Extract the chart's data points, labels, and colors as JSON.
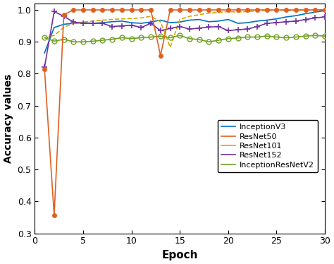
{
  "title": "",
  "xlabel": "Epoch",
  "ylabel": "Accuracy values",
  "xlim": [
    0,
    30
  ],
  "ylim": [
    0.3,
    1.02
  ],
  "yticks": [
    0.3,
    0.4,
    0.5,
    0.6,
    0.7,
    0.8,
    0.9,
    1.0
  ],
  "xticks": [
    0,
    5,
    10,
    15,
    20,
    25,
    30
  ],
  "InceptionV3": {
    "color": "#0070C0",
    "linestyle": "-",
    "marker": null,
    "linewidth": 1.2,
    "x": [
      1,
      2,
      3,
      4,
      5,
      6,
      7,
      8,
      9,
      10,
      11,
      12,
      13,
      14,
      15,
      16,
      17,
      18,
      19,
      20,
      21,
      22,
      23,
      24,
      25,
      26,
      27,
      28,
      29,
      30
    ],
    "y": [
      0.865,
      0.945,
      0.955,
      0.958,
      0.96,
      0.958,
      0.96,
      0.963,
      0.965,
      0.96,
      0.958,
      0.962,
      0.968,
      0.96,
      0.962,
      0.968,
      0.97,
      0.963,
      0.965,
      0.97,
      0.958,
      0.96,
      0.965,
      0.968,
      0.972,
      0.978,
      0.982,
      0.988,
      0.993,
      0.998
    ]
  },
  "ResNet50": {
    "color": "#E06020",
    "linestyle": "-",
    "marker": "o",
    "markersize": 4,
    "linewidth": 1.2,
    "x": [
      1,
      2,
      3,
      4,
      5,
      6,
      7,
      8,
      9,
      10,
      11,
      12,
      13,
      14,
      15,
      16,
      17,
      18,
      19,
      20,
      21,
      22,
      23,
      24,
      25,
      26,
      27,
      28,
      29,
      30
    ],
    "y": [
      0.815,
      0.357,
      0.985,
      1.0,
      1.0,
      1.0,
      1.0,
      1.0,
      1.0,
      1.0,
      1.0,
      1.0,
      0.857,
      1.0,
      1.0,
      1.0,
      1.0,
      1.0,
      1.0,
      1.0,
      1.0,
      1.0,
      1.0,
      1.0,
      1.0,
      1.0,
      1.0,
      1.0,
      1.0,
      1.0
    ]
  },
  "ResNet101": {
    "color": "#D4A800",
    "linestyle": "--",
    "marker": null,
    "linewidth": 1.2,
    "x": [
      1,
      2,
      3,
      4,
      5,
      6,
      7,
      8,
      9,
      10,
      11,
      12,
      13,
      14,
      15,
      16,
      17,
      18,
      19,
      20,
      21,
      22,
      23,
      24,
      25,
      26,
      27,
      28,
      29,
      30
    ],
    "y": [
      0.912,
      0.92,
      0.945,
      0.958,
      0.962,
      0.965,
      0.968,
      0.97,
      0.972,
      0.973,
      0.975,
      0.98,
      0.963,
      0.883,
      0.97,
      0.98,
      0.985,
      0.99,
      0.992,
      0.995,
      0.993,
      0.995,
      0.997,
      0.998,
      1.0,
      0.998,
      0.998,
      1.0,
      1.0,
      1.0
    ]
  },
  "ResNet152": {
    "color": "#7030A0",
    "linestyle": "-",
    "marker": "+",
    "markersize": 6,
    "markeredgewidth": 1.2,
    "linewidth": 1.2,
    "x": [
      1,
      2,
      3,
      4,
      5,
      6,
      7,
      8,
      9,
      10,
      11,
      12,
      13,
      14,
      15,
      16,
      17,
      18,
      19,
      20,
      21,
      22,
      23,
      24,
      25,
      26,
      27,
      28,
      29,
      30
    ],
    "y": [
      0.82,
      0.995,
      0.98,
      0.962,
      0.958,
      0.958,
      0.958,
      0.948,
      0.95,
      0.952,
      0.945,
      0.958,
      0.935,
      0.942,
      0.948,
      0.94,
      0.943,
      0.946,
      0.948,
      0.935,
      0.938,
      0.94,
      0.948,
      0.958,
      0.96,
      0.963,
      0.965,
      0.97,
      0.975,
      0.978
    ]
  },
  "InceptionResNetV2": {
    "color": "#70A020",
    "linestyle": "-",
    "marker": "o",
    "markersize": 5,
    "markerfacecolor": "none",
    "linewidth": 1.2,
    "x": [
      1,
      2,
      3,
      4,
      5,
      6,
      7,
      8,
      9,
      10,
      11,
      12,
      13,
      14,
      15,
      16,
      17,
      18,
      19,
      20,
      21,
      22,
      23,
      24,
      25,
      26,
      27,
      28,
      29,
      30
    ],
    "y": [
      0.913,
      0.902,
      0.908,
      0.9,
      0.9,
      0.902,
      0.905,
      0.908,
      0.913,
      0.91,
      0.913,
      0.915,
      0.918,
      0.913,
      0.92,
      0.91,
      0.907,
      0.9,
      0.905,
      0.91,
      0.912,
      0.915,
      0.915,
      0.918,
      0.915,
      0.913,
      0.915,
      0.918,
      0.92,
      0.918
    ]
  },
  "background_color": "#ffffff"
}
